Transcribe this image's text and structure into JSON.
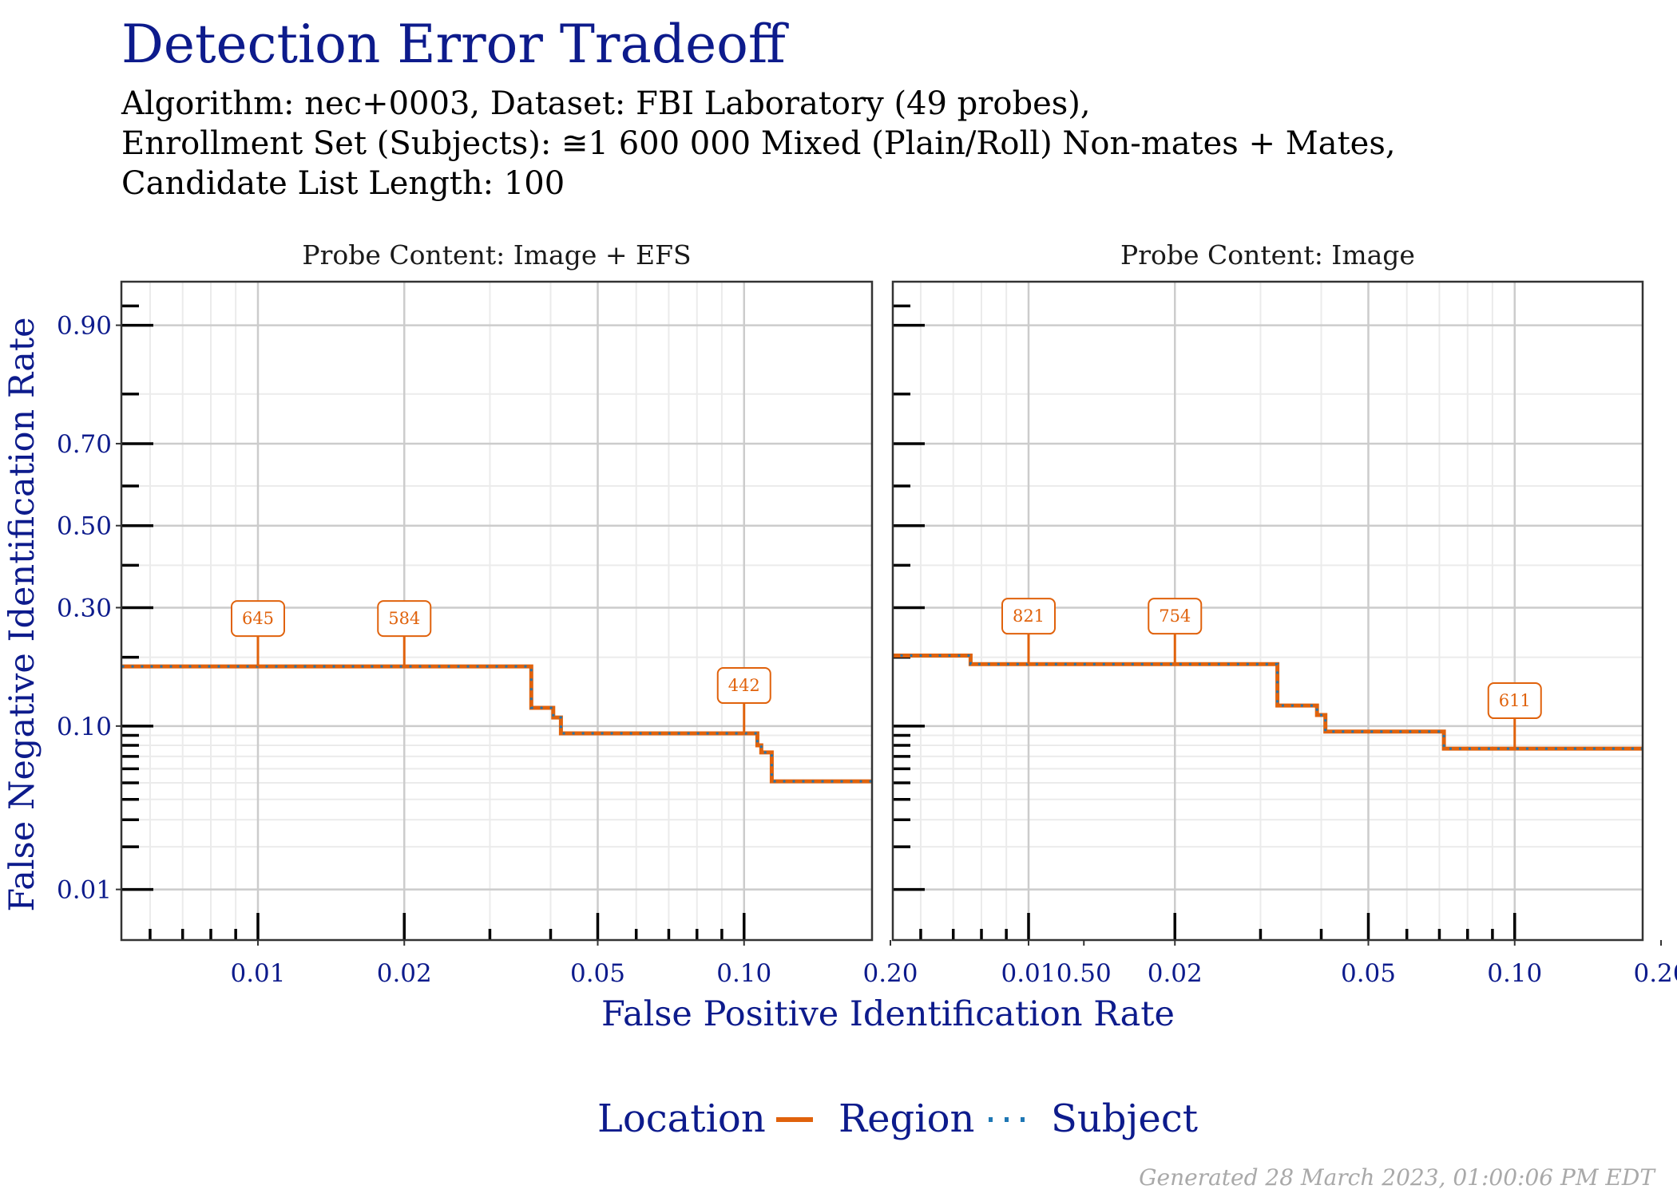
{
  "title": "Detection Error Tradeoff",
  "subtitle_lines": [
    "Algorithm: nec+0003, Dataset: FBI Laboratory (49 probes),",
    "Enrollment Set (Subjects): ≅1 600 000 Mixed (Plain/Roll) Non-mates + Mates,",
    "Candidate List Length: 100"
  ],
  "footer": "Generated 28 March 2023, 01:00:06 PM EDT",
  "colors": {
    "title": "#0d1b8c",
    "region": "#e0620c",
    "subject": "#1f77b4",
    "grid_major": "#cccccc",
    "grid_minor": "#ebebeb",
    "panel_border": "#333333"
  },
  "chart_data": {
    "type": "line",
    "xlabel": "False Positive Identification Rate",
    "ylabel": "False Negative Identification Rate",
    "xscale": "log",
    "yscale": "probit",
    "x_ticks": [
      0.01,
      0.02,
      0.05,
      0.1,
      0.2,
      0.5
    ],
    "x_tick_labels": [
      "0.01",
      "0.02",
      "0.05",
      "0.10",
      "0.20",
      "0.50"
    ],
    "y_ticks": [
      0.01,
      0.1,
      0.3,
      0.5,
      0.7,
      0.9
    ],
    "y_tick_labels": [
      "0.01",
      "0.10",
      "0.30",
      "0.50",
      "0.70",
      "0.90"
    ],
    "legend": {
      "title": "Location",
      "position": "bottom",
      "entries": [
        {
          "name": "Region",
          "style": "solid"
        },
        {
          "name": "Subject",
          "style": "dotted"
        }
      ]
    },
    "panels": [
      {
        "strip": "Probe Content: Image + EFS",
        "series": [
          {
            "name": "Region",
            "points": [
              [
                0.0031,
                0.35
              ],
              [
                0.0031,
                0.2
              ],
              [
                0.0044,
                0.2
              ],
              [
                0.0044,
                0.184
              ],
              [
                0.0365,
                0.184
              ],
              [
                0.0365,
                0.122
              ],
              [
                0.0405,
                0.122
              ],
              [
                0.0405,
                0.11
              ],
              [
                0.042,
                0.11
              ],
              [
                0.042,
                0.092
              ],
              [
                0.1065,
                0.092
              ],
              [
                0.1065,
                0.08
              ],
              [
                0.1085,
                0.08
              ],
              [
                0.1085,
                0.0735
              ],
              [
                0.114,
                0.0735
              ],
              [
                0.114,
                0.051
              ],
              [
                0.414,
                0.051
              ],
              [
                0.414,
                0.0255
              ],
              [
                0.6,
                0.0255
              ]
            ]
          },
          {
            "name": "Subject",
            "points": [
              [
                0.0031,
                0.35
              ],
              [
                0.0031,
                0.2
              ],
              [
                0.0044,
                0.2
              ],
              [
                0.0044,
                0.184
              ],
              [
                0.0365,
                0.184
              ],
              [
                0.0365,
                0.122
              ],
              [
                0.0405,
                0.122
              ],
              [
                0.0405,
                0.11
              ],
              [
                0.042,
                0.11
              ],
              [
                0.042,
                0.092
              ],
              [
                0.1065,
                0.092
              ],
              [
                0.1065,
                0.08
              ],
              [
                0.1085,
                0.08
              ],
              [
                0.1085,
                0.0735
              ],
              [
                0.114,
                0.0735
              ],
              [
                0.114,
                0.051
              ],
              [
                0.414,
                0.051
              ],
              [
                0.414,
                0.0255
              ],
              [
                0.6,
                0.0255
              ]
            ]
          }
        ],
        "annotations": [
          {
            "label": "645",
            "x": 0.01,
            "y": 0.184
          },
          {
            "label": "584",
            "x": 0.02,
            "y": 0.184
          },
          {
            "label": "442",
            "x": 0.1,
            "y": 0.092
          }
        ]
      },
      {
        "strip": "Probe Content: Image",
        "series": [
          {
            "name": "Region",
            "points": [
              [
                0.0031,
                0.38
              ],
              [
                0.0031,
                0.24
              ],
              [
                0.0038,
                0.24
              ],
              [
                0.0038,
                0.222
              ],
              [
                0.0048,
                0.222
              ],
              [
                0.0048,
                0.203
              ],
              [
                0.0076,
                0.203
              ],
              [
                0.0076,
                0.188
              ],
              [
                0.0325,
                0.188
              ],
              [
                0.0325,
                0.125
              ],
              [
                0.0392,
                0.125
              ],
              [
                0.0392,
                0.113
              ],
              [
                0.0408,
                0.113
              ],
              [
                0.0408,
                0.094
              ],
              [
                0.0715,
                0.094
              ],
              [
                0.0715,
                0.077
              ],
              [
                0.246,
                0.077
              ],
              [
                0.246,
                0.0515
              ],
              [
                0.535,
                0.0515
              ],
              [
                0.535,
                0.026
              ],
              [
                0.6,
                0.026
              ]
            ]
          },
          {
            "name": "Subject",
            "points": [
              [
                0.0031,
                0.38
              ],
              [
                0.0031,
                0.24
              ],
              [
                0.0038,
                0.24
              ],
              [
                0.0038,
                0.222
              ],
              [
                0.0048,
                0.222
              ],
              [
                0.0048,
                0.203
              ],
              [
                0.0076,
                0.203
              ],
              [
                0.0076,
                0.188
              ],
              [
                0.0325,
                0.188
              ],
              [
                0.0325,
                0.125
              ],
              [
                0.0392,
                0.125
              ],
              [
                0.0392,
                0.113
              ],
              [
                0.0408,
                0.113
              ],
              [
                0.0408,
                0.094
              ],
              [
                0.0715,
                0.094
              ],
              [
                0.0715,
                0.077
              ],
              [
                0.246,
                0.077
              ],
              [
                0.246,
                0.0515
              ],
              [
                0.535,
                0.0515
              ],
              [
                0.535,
                0.026
              ],
              [
                0.6,
                0.026
              ]
            ]
          }
        ],
        "annotations": [
          {
            "label": "821",
            "x": 0.01,
            "y": 0.188
          },
          {
            "label": "754",
            "x": 0.02,
            "y": 0.188
          },
          {
            "label": "611",
            "x": 0.1,
            "y": 0.077
          }
        ]
      }
    ]
  }
}
